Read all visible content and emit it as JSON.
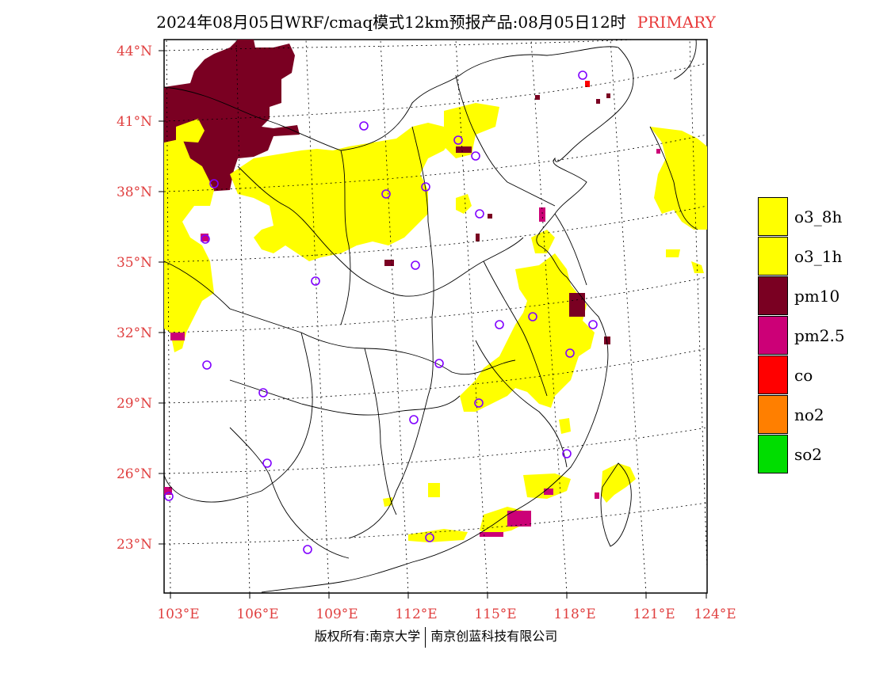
{
  "header": {
    "title": "2024年08月05日WRF/cmaq模式12km预报产品:08月05日12时",
    "tag": "PRIMARY"
  },
  "axes": {
    "lat_labels": [
      "44°N",
      "41°N",
      "38°N",
      "35°N",
      "32°N",
      "29°N",
      "26°N",
      "23°N"
    ],
    "lon_labels": [
      "103°E",
      "106°E",
      "109°E",
      "112°E",
      "115°E",
      "118°E",
      "121°E",
      "124°E"
    ]
  },
  "legend": {
    "items": [
      {
        "label": "o3_8h",
        "color": "#ffff00"
      },
      {
        "label": "o3_1h",
        "color": "#ffff00"
      },
      {
        "label": "pm10",
        "color": "#7a0022"
      },
      {
        "label": "pm2.5",
        "color": "#cc0077"
      },
      {
        "label": "co",
        "color": "#ff0000"
      },
      {
        "label": "no2",
        "color": "#ff7f00"
      },
      {
        "label": "so2",
        "color": "#00dd00"
      }
    ]
  },
  "footer": {
    "left": "版权所有:南京大学",
    "right": "南京创蓝科技有限公司"
  },
  "colors": {
    "o3": "#ffff00",
    "pm10": "#7a0022",
    "pm25": "#cc0077",
    "label": "#e04040",
    "station": "#8000ff"
  }
}
